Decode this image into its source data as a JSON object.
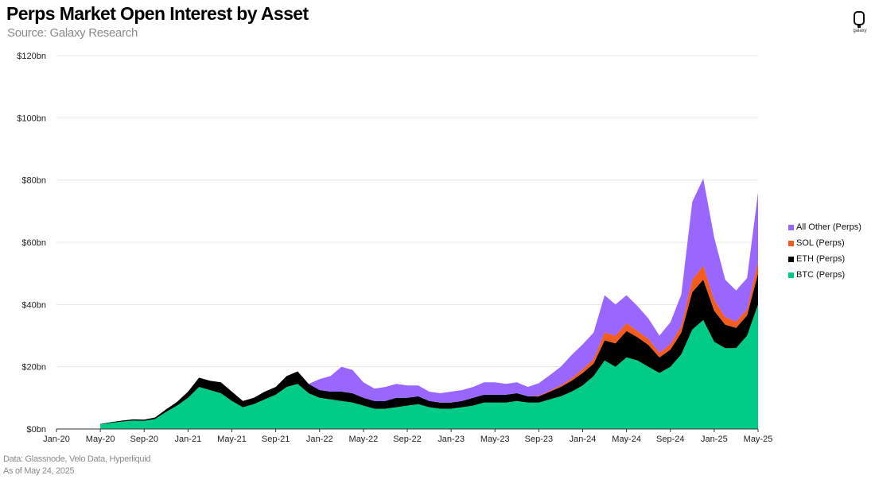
{
  "title": "Perps Market Open Interest by Asset",
  "subtitle": "Source: Galaxy Research",
  "logo_text": "galaxy",
  "footnote_source": "Data: Glassnode, Velo Data, Hyperliquid",
  "footnote_date": "As of May 24, 2025",
  "chart_data": {
    "type": "area",
    "stacked": true,
    "x_unit": "month",
    "x": [
      "Jan-20",
      "Feb-20",
      "Mar-20",
      "Apr-20",
      "May-20",
      "Jun-20",
      "Jul-20",
      "Aug-20",
      "Sep-20",
      "Oct-20",
      "Nov-20",
      "Dec-20",
      "Jan-21",
      "Feb-21",
      "Mar-21",
      "Apr-21",
      "May-21",
      "Jun-21",
      "Jul-21",
      "Aug-21",
      "Sep-21",
      "Oct-21",
      "Nov-21",
      "Dec-21",
      "Jan-22",
      "Feb-22",
      "Mar-22",
      "Apr-22",
      "May-22",
      "Jun-22",
      "Jul-22",
      "Aug-22",
      "Sep-22",
      "Oct-22",
      "Nov-22",
      "Dec-22",
      "Jan-23",
      "Feb-23",
      "Mar-23",
      "Apr-23",
      "May-23",
      "Jun-23",
      "Jul-23",
      "Aug-23",
      "Sep-23",
      "Oct-23",
      "Nov-23",
      "Dec-23",
      "Jan-24",
      "Feb-24",
      "Mar-24",
      "Apr-24",
      "May-24",
      "Jun-24",
      "Jul-24",
      "Aug-24",
      "Sep-24",
      "Oct-24",
      "Nov-24",
      "Dec-24",
      "Jan-25",
      "Feb-25",
      "Mar-25",
      "Apr-25",
      "May-25"
    ],
    "series": [
      {
        "name": "BTC (Perps)",
        "color": "#00cc88",
        "values": [
          null,
          null,
          null,
          null,
          1.5,
          2.0,
          2.4,
          2.7,
          2.6,
          3.2,
          5.5,
          7.5,
          10.0,
          13.5,
          12.5,
          11.5,
          9.0,
          7.0,
          8.0,
          9.5,
          11.0,
          13.5,
          14.5,
          11.5,
          10.0,
          9.5,
          9.0,
          8.5,
          7.5,
          6.5,
          6.5,
          7.0,
          7.5,
          8.0,
          7.0,
          6.5,
          6.5,
          7.0,
          7.5,
          8.5,
          8.5,
          8.5,
          9.0,
          8.5,
          8.5,
          9.5,
          10.5,
          12.0,
          14.0,
          17.0,
          22.0,
          20.0,
          23.0,
          22.0,
          20.0,
          18.0,
          20.0,
          24.0,
          32.0,
          35.0,
          28.0,
          26.0,
          26.0,
          30.0,
          40.0
        ]
      },
      {
        "name": "ETH (Perps)",
        "color": "#000000",
        "values": [
          null,
          null,
          null,
          null,
          0.1,
          0.2,
          0.3,
          0.4,
          0.4,
          0.5,
          0.8,
          1.2,
          2.0,
          3.0,
          3.0,
          3.5,
          3.0,
          2.0,
          2.0,
          2.5,
          2.5,
          3.5,
          4.0,
          3.0,
          2.5,
          2.5,
          3.0,
          3.0,
          2.5,
          2.5,
          2.5,
          3.0,
          2.5,
          2.5,
          2.0,
          2.0,
          2.0,
          2.0,
          2.5,
          2.5,
          2.5,
          2.5,
          2.5,
          2.0,
          2.0,
          2.5,
          3.0,
          3.5,
          4.0,
          4.0,
          6.5,
          7.5,
          8.5,
          7.5,
          7.0,
          5.0,
          5.5,
          7.0,
          12.0,
          13.0,
          10.0,
          7.5,
          6.5,
          6.5,
          10.0
        ]
      },
      {
        "name": "SOL (Perps)",
        "color": "#f25c1e",
        "values": [
          null,
          null,
          null,
          null,
          0,
          0,
          0,
          0,
          0,
          0,
          0,
          0,
          0,
          0,
          0,
          0,
          0,
          0,
          0,
          0,
          0,
          0,
          0,
          0,
          0,
          0,
          0,
          0,
          0,
          0,
          0,
          0,
          0,
          0,
          0,
          0,
          0,
          0,
          0,
          0,
          0,
          0,
          0,
          0,
          0.2,
          0.3,
          0.5,
          0.8,
          1.2,
          1.5,
          2.5,
          2.5,
          2.5,
          2.0,
          2.0,
          1.5,
          1.8,
          2.2,
          4.0,
          4.5,
          3.5,
          2.5,
          2.0,
          2.0,
          4.0
        ]
      },
      {
        "name": "All Other (Perps)",
        "color": "#9966ff",
        "values": [
          null,
          null,
          null,
          null,
          0,
          0,
          0,
          0,
          0,
          0,
          0,
          0,
          0,
          0,
          0,
          0,
          0,
          0,
          0,
          0,
          0,
          0,
          0,
          0,
          3.5,
          5.0,
          8.0,
          7.5,
          5.0,
          4.0,
          4.5,
          4.5,
          4.0,
          3.5,
          3.0,
          3.0,
          3.5,
          3.5,
          3.5,
          4.0,
          4.0,
          3.5,
          3.5,
          3.0,
          4.0,
          5.0,
          6.0,
          7.5,
          8.0,
          8.5,
          12.0,
          10.0,
          9.0,
          8.0,
          6.5,
          5.5,
          7.0,
          10.0,
          25.0,
          28.0,
          20.0,
          12.0,
          10.0,
          10.0,
          22.0
        ]
      }
    ],
    "xticks": [
      "Jan-20",
      "May-20",
      "Sep-20",
      "Jan-21",
      "May-21",
      "Sep-21",
      "Jan-22",
      "May-22",
      "Sep-22",
      "Jan-23",
      "May-23",
      "Sep-23",
      "Jan-24",
      "May-24",
      "Sep-24",
      "Jan-25",
      "May-25"
    ],
    "yticks": [
      0,
      20,
      40,
      60,
      80,
      100,
      120
    ],
    "ytick_labels": [
      "$0bn",
      "$20bn",
      "$40bn",
      "$60bn",
      "$80bn",
      "$100bn",
      "$120bn"
    ],
    "ylim": [
      0,
      120
    ],
    "grid": "horizontal",
    "legend_position": "right",
    "legend": [
      "All Other (Perps)",
      "SOL (Perps)",
      "ETH (Perps)",
      "BTC (Perps)"
    ]
  }
}
